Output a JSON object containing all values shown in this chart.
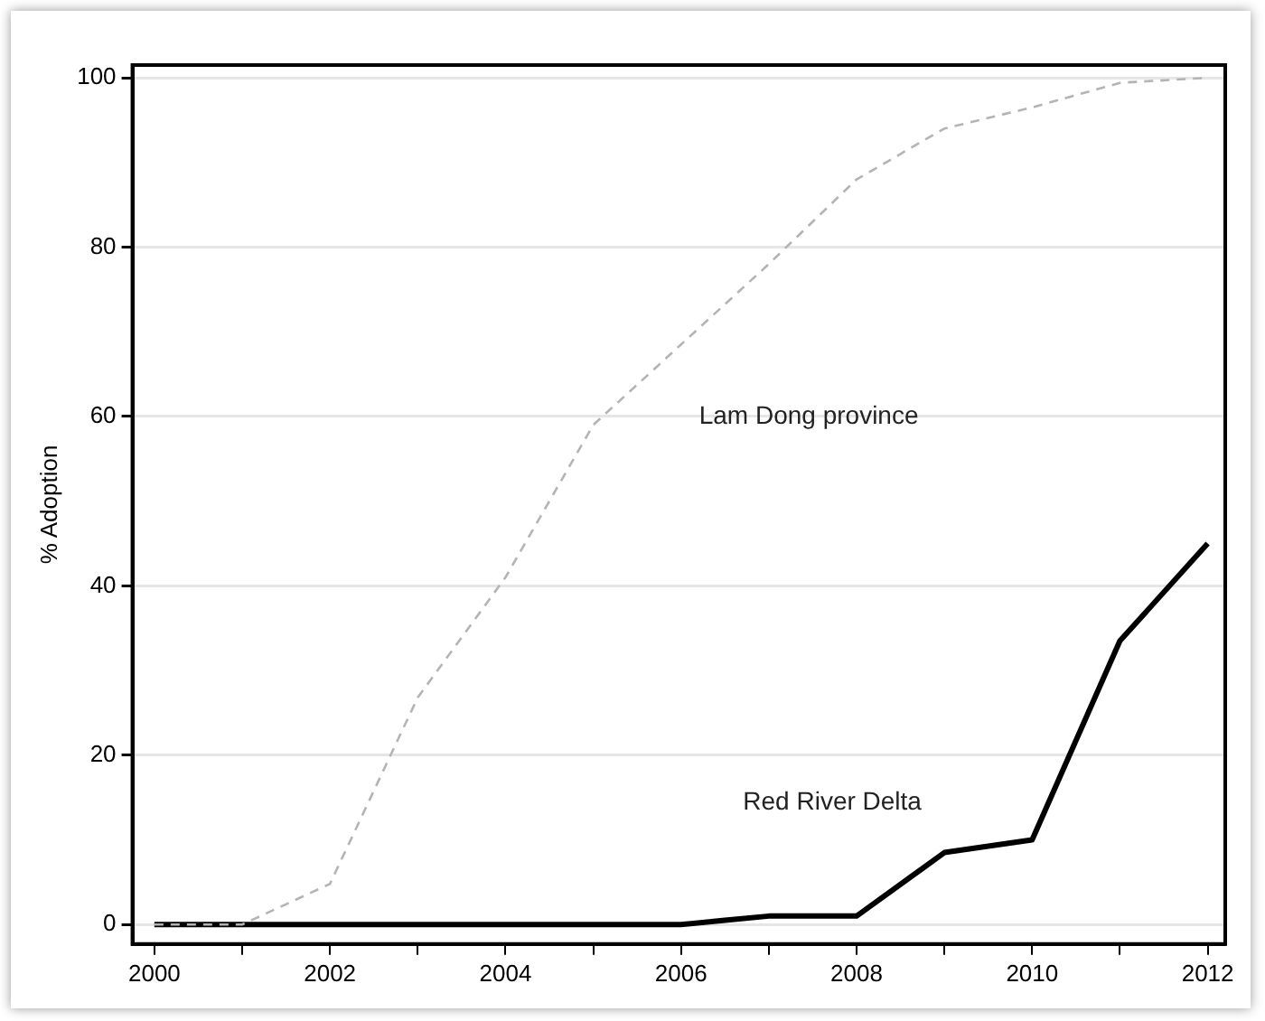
{
  "chart_data": {
    "type": "line",
    "ylabel": "% Adoption",
    "series": [
      {
        "name": "Lam Dong province",
        "color": "#b4b4b4",
        "line_style": "dashed",
        "x": [
          2000,
          2001,
          2002,
          2003,
          2004,
          2005,
          2006,
          2007,
          2008,
          2009,
          2010,
          2011,
          2012
        ],
        "values": [
          0,
          0,
          4.8,
          26.8,
          41,
          59,
          68.5,
          78,
          88,
          94,
          96.5,
          99.4,
          100
        ]
      },
      {
        "name": "Red River Delta",
        "color": "#000000",
        "line_style": "solid",
        "x": [
          2000,
          2001,
          2002,
          2003,
          2004,
          2005,
          2006,
          2006.5,
          2007,
          2008,
          2009,
          2010,
          2011,
          2012
        ],
        "values": [
          0,
          0,
          0,
          0,
          0,
          0,
          0,
          0.5,
          1,
          1,
          8.5,
          10,
          33.5,
          45
        ]
      }
    ],
    "xlim": [
      1999.75,
      2012.2
    ],
    "xticks": [
      2000,
      {
        "value": 2001,
        "label": null
      },
      2002,
      {
        "value": 2003,
        "label": null
      },
      2004,
      {
        "value": 2005,
        "label": null
      },
      2006,
      {
        "value": 2007,
        "label": null
      },
      2008,
      {
        "value": 2009,
        "label": null
      },
      2010,
      {
        "value": 2011,
        "label": null
      },
      2012
    ],
    "ylim": [
      -2.3,
      101.5
    ],
    "yticks": [
      0,
      20,
      40,
      60,
      80,
      100
    ],
    "grid": "y",
    "legend": false,
    "marker": "none"
  }
}
